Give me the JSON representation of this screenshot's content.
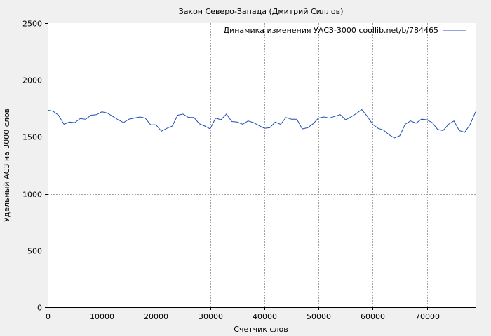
{
  "chart_data": {
    "type": "line",
    "title": "Закон Северо-Запада (Дмитрий Силлов)",
    "xlabel": "Счетчик слов",
    "ylabel": "Удельный АСЗ на 3000 слов",
    "xlim": [
      0,
      79000
    ],
    "ylim": [
      0,
      2500
    ],
    "xticks": [
      0,
      10000,
      20000,
      30000,
      40000,
      50000,
      60000,
      70000
    ],
    "xtick_labels": [
      "0",
      "10000",
      "20000",
      "30000",
      "40000",
      "50000",
      "60000",
      "70000"
    ],
    "yticks": [
      0,
      500,
      1000,
      1500,
      2000,
      2500
    ],
    "ytick_labels": [
      "0",
      "500",
      "1000",
      "1500",
      "2000",
      "2500"
    ],
    "grid": true,
    "legend_position": "top-right",
    "series": [
      {
        "name": "Динамика изменения УАСЗ-3000 coollib.net/b/784465",
        "color": "#1f4fb4",
        "x": [
          0,
          1000,
          2000,
          3000,
          4000,
          5000,
          6000,
          7000,
          8000,
          9000,
          10000,
          11000,
          12000,
          13000,
          14000,
          15000,
          16000,
          17000,
          18000,
          19000,
          20000,
          21000,
          22000,
          23000,
          24000,
          25000,
          26000,
          27000,
          28000,
          29000,
          30000,
          31000,
          32000,
          33000,
          34000,
          35000,
          36000,
          37000,
          38000,
          39000,
          40000,
          41000,
          42000,
          43000,
          44000,
          45000,
          46000,
          47000,
          48000,
          49000,
          50000,
          51000,
          52000,
          53000,
          54000,
          55000,
          56000,
          57000,
          58000,
          59000,
          60000,
          61000,
          62000,
          63000,
          64000,
          65000,
          66000,
          67000,
          68000,
          69000,
          70000,
          71000,
          72000,
          73000,
          74000,
          75000,
          76000,
          77000,
          78000,
          79000
        ],
        "values": [
          1735,
          1725,
          1690,
          1610,
          1630,
          1625,
          1660,
          1655,
          1690,
          1695,
          1720,
          1710,
          1680,
          1650,
          1625,
          1655,
          1665,
          1675,
          1665,
          1605,
          1605,
          1550,
          1575,
          1595,
          1690,
          1700,
          1670,
          1670,
          1615,
          1595,
          1570,
          1665,
          1650,
          1700,
          1635,
          1630,
          1610,
          1640,
          1625,
          1600,
          1575,
          1580,
          1630,
          1610,
          1670,
          1655,
          1655,
          1570,
          1580,
          1615,
          1665,
          1675,
          1665,
          1680,
          1695,
          1650,
          1675,
          1705,
          1740,
          1680,
          1610,
          1575,
          1560,
          1520,
          1490,
          1510,
          1610,
          1640,
          1620,
          1655,
          1650,
          1625,
          1565,
          1555,
          1610,
          1640,
          1555,
          1540,
          1610,
          1720
        ]
      }
    ]
  }
}
